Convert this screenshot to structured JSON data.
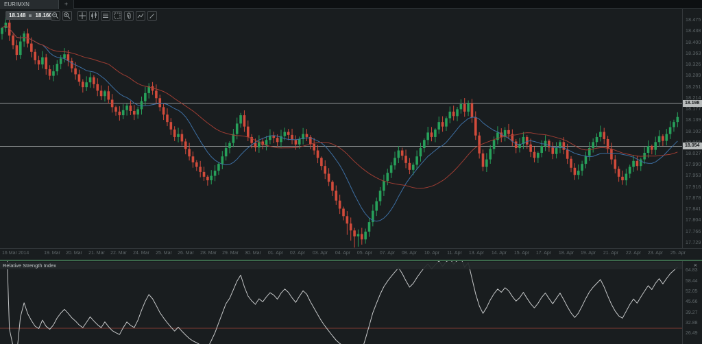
{
  "tabbar": {
    "active_tab": "EUR/MXN",
    "new_tab_label": "+"
  },
  "toolbar": {
    "bid": "18.148",
    "ask": "18.160",
    "buttons": [
      {
        "name": "zoom-out"
      },
      {
        "name": "zoom-in"
      },
      {
        "name": "cursor-mode"
      },
      {
        "name": "chart-type-candles"
      },
      {
        "name": "objects-list"
      },
      {
        "name": "expand-chart"
      },
      {
        "name": "attach-order"
      },
      {
        "name": "edit-indicators"
      },
      {
        "name": "draw-tools"
      }
    ]
  },
  "price_axis": {
    "ticks": [
      "18.475",
      "18.438",
      "18.400",
      "18.363",
      "18.326",
      "18.289",
      "18.251",
      "18.214",
      "18.177",
      "18.139",
      "18.102",
      "18.065",
      "18.027",
      "17.990",
      "17.953",
      "17.916",
      "17.878",
      "17.841",
      "17.804",
      "17.766",
      "17.729"
    ],
    "tags": [
      {
        "label": "18.198",
        "value": 18.198
      },
      {
        "label": "18.054",
        "value": 18.054
      }
    ]
  },
  "time_axis": {
    "labels": [
      "16 Mar 2014",
      "19. Mar",
      "20. Mar",
      "21. Mar",
      "22. Mar",
      "24. Mar",
      "25. Mar",
      "26. Mar",
      "28. Mar",
      "29. Mar",
      "30. Mar",
      "01. Apr",
      "02. Apr",
      "03. Apr",
      "04. Apr",
      "05. Apr",
      "07. Apr",
      "08. Apr",
      "10. Apr",
      "11. Apr",
      "13. Apr",
      "14. Apr",
      "15. Apr",
      "17. Apr",
      "18. Apr",
      "19. Apr",
      "21. Apr",
      "22. Apr",
      "23. Apr",
      "25. Apr"
    ]
  },
  "rsi": {
    "title": "Relative Strength Index",
    "close_label": "×",
    "ticks": [
      "64.83",
      "58.44",
      "52.05",
      "45.66",
      "39.27",
      "32.88",
      "26.49"
    ],
    "overbought": 70,
    "oversold": 30
  },
  "chart_data": {
    "type": "candlestick",
    "symbol": "EUR/MXN",
    "y_range": [
      17.713,
      18.514
    ],
    "levels": [
      18.198,
      18.054
    ],
    "first_open": 18.43,
    "closes": [
      18.45,
      18.468,
      18.425,
      18.392,
      18.36,
      18.405,
      18.432,
      18.398,
      18.37,
      18.342,
      18.328,
      18.352,
      18.312,
      18.29,
      18.305,
      18.33,
      18.348,
      18.362,
      18.34,
      18.315,
      18.295,
      18.27,
      18.252,
      18.268,
      18.285,
      18.262,
      18.24,
      18.222,
      18.238,
      18.21,
      18.185,
      18.17,
      18.158,
      18.175,
      18.19,
      18.172,
      18.16,
      18.178,
      18.205,
      18.232,
      18.255,
      18.24,
      18.215,
      18.185,
      18.16,
      18.135,
      18.11,
      18.085,
      18.095,
      18.07,
      18.045,
      18.02,
      18.0,
      17.985,
      17.968,
      17.952,
      17.94,
      17.955,
      17.972,
      17.995,
      18.02,
      18.048,
      18.065,
      18.095,
      18.13,
      18.158,
      18.12,
      18.085,
      18.065,
      18.05,
      18.07,
      18.058,
      18.075,
      18.09,
      18.082,
      18.068,
      18.088,
      18.102,
      18.092,
      18.075,
      18.06,
      18.078,
      18.095,
      18.085,
      18.062,
      18.04,
      18.015,
      17.988,
      17.962,
      17.935,
      17.905,
      17.872,
      17.845,
      17.82,
      17.795,
      17.772,
      17.752,
      17.76,
      17.742,
      17.768,
      17.8,
      17.838,
      17.87,
      17.905,
      17.938,
      17.965,
      17.99,
      18.015,
      18.04,
      18.022,
      17.998,
      17.975,
      17.992,
      18.02,
      18.048,
      18.075,
      18.1,
      18.085,
      18.11,
      18.135,
      18.12,
      18.148,
      18.17,
      18.155,
      18.178,
      18.195,
      18.17,
      18.198,
      18.15,
      18.09,
      18.03,
      17.985,
      18.01,
      18.045,
      18.075,
      18.1,
      18.085,
      18.108,
      18.095,
      18.07,
      18.048,
      18.062,
      18.085,
      18.06,
      18.035,
      18.015,
      18.032,
      18.055,
      18.072,
      18.05,
      18.028,
      18.048,
      18.068,
      18.042,
      18.012,
      17.982,
      17.958,
      17.972,
      17.995,
      18.022,
      18.048,
      18.068,
      18.085,
      18.102,
      18.078,
      18.045,
      18.01,
      17.978,
      17.952,
      17.94,
      17.962,
      17.985,
      18.005,
      17.988,
      18.01,
      18.032,
      18.055,
      18.042,
      18.068,
      18.088,
      18.072,
      18.095,
      18.118,
      18.135,
      18.152
    ],
    "moving_averages": [
      {
        "name": "fast",
        "period": 12,
        "color": "#3d6fa3"
      },
      {
        "name": "slow",
        "period": 30,
        "color": "#9e3d33"
      }
    ],
    "indicator": {
      "type": "line",
      "name": "Relative Strength Index",
      "overbought": 70,
      "oversold": 30,
      "axis_range": [
        26.49,
        70
      ]
    }
  },
  "colors": {
    "up": "#27a05a",
    "down": "#d14b3b",
    "level": "#a9adad",
    "rsi_line": "#c6c8c9",
    "overbought_line": "#3c6a4c",
    "oversold_line": "#7e3b33",
    "tag_bg": "#b9bdbd"
  }
}
